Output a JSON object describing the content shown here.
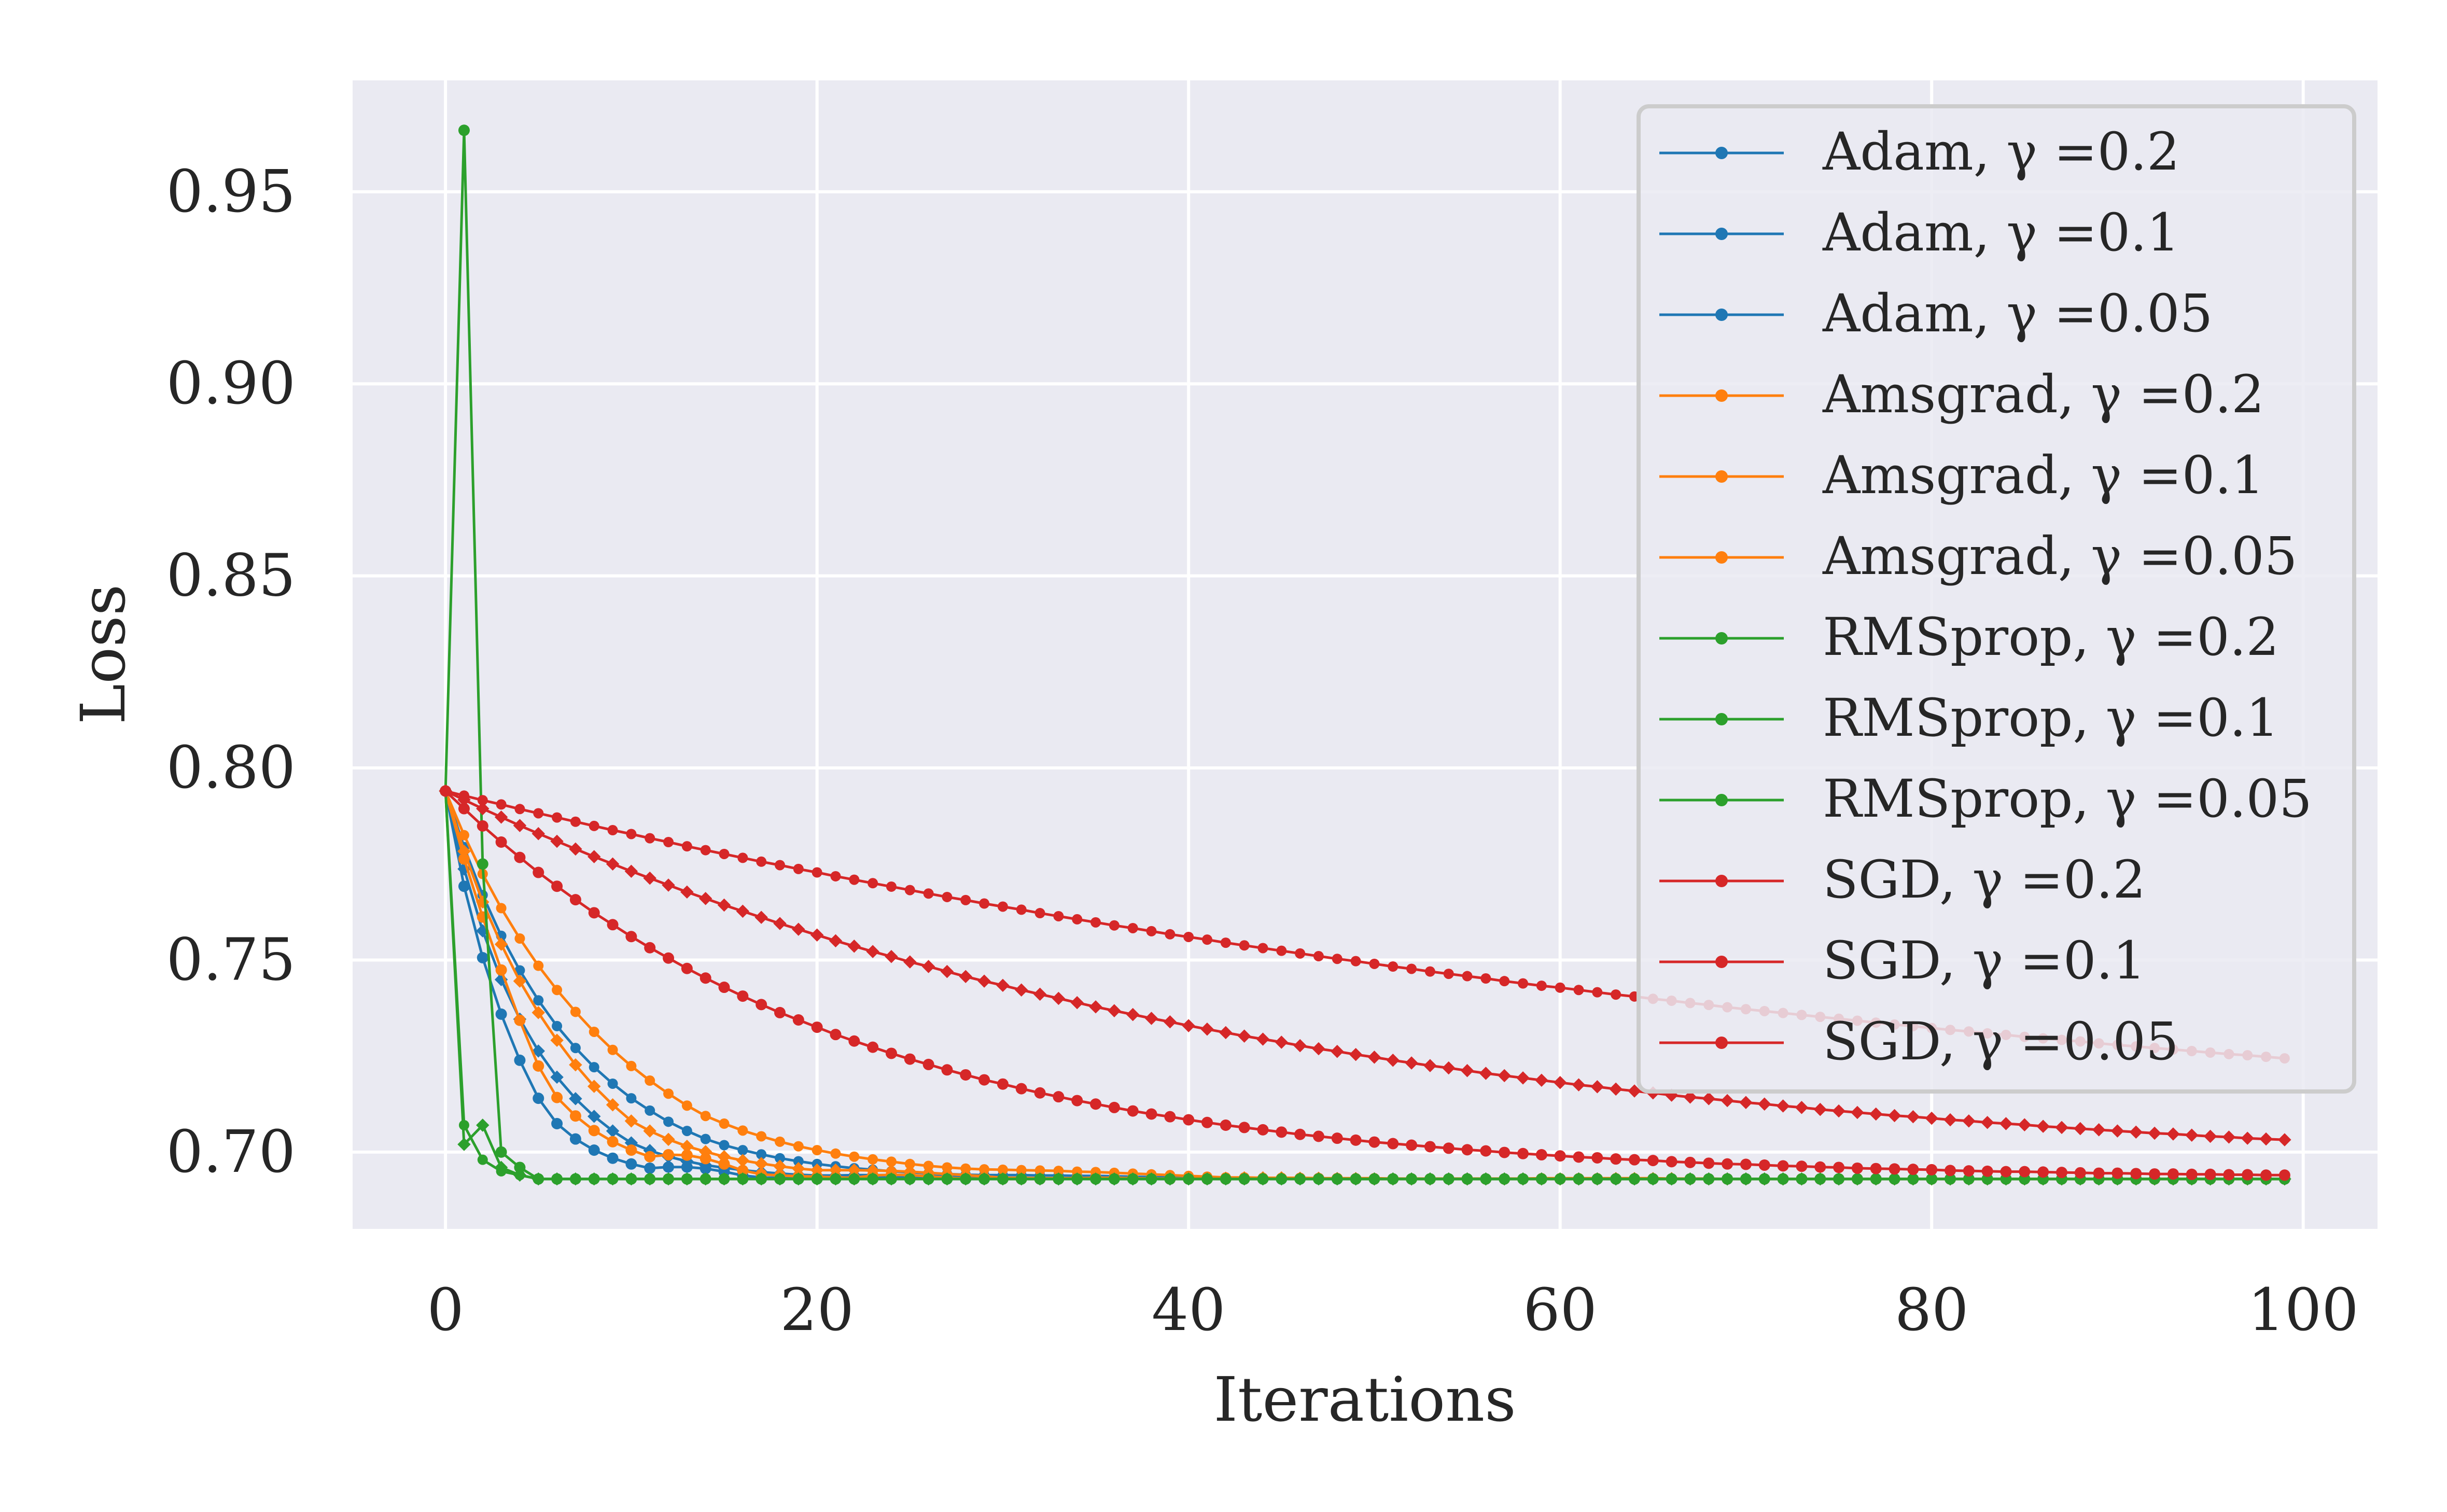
{
  "chart_data": {
    "type": "line",
    "title": "",
    "xlabel": "Iterations",
    "ylabel": "Loss",
    "xlim": [
      -5,
      104
    ],
    "ylim": [
      0.68,
      0.979
    ],
    "xticks": [
      0,
      20,
      40,
      60,
      80,
      100
    ],
    "yticks": [
      0.7,
      0.75,
      0.8,
      0.85,
      0.9,
      0.95
    ],
    "grid": true,
    "legend_position": "top-right",
    "colors": {
      "blue": "#1f77b4",
      "orange": "#ff7f0e",
      "green": "#2ca02c",
      "red": "#d62728",
      "plot_bg": "#eaeaf2",
      "grid": "#ffffff"
    },
    "series": [
      {
        "name": "Adam, γ =0.2",
        "optimizer": "Adam",
        "lr": 0.2,
        "color": "#1f77b4",
        "marker": "circle"
      },
      {
        "name": "Adam, γ =0.1",
        "optimizer": "Adam",
        "lr": 0.1,
        "color": "#1f77b4",
        "marker": "star"
      },
      {
        "name": "Adam, γ =0.05",
        "optimizer": "Adam",
        "lr": 0.05,
        "color": "#1f77b4",
        "marker": "dot"
      },
      {
        "name": "Amsgrad, γ =0.2",
        "optimizer": "Amsgrad",
        "lr": 0.2,
        "color": "#ff7f0e",
        "marker": "circle"
      },
      {
        "name": "Amsgrad, γ =0.1",
        "optimizer": "Amsgrad",
        "lr": 0.1,
        "color": "#ff7f0e",
        "marker": "star"
      },
      {
        "name": "Amsgrad, γ =0.05",
        "optimizer": "Amsgrad",
        "lr": 0.05,
        "color": "#ff7f0e",
        "marker": "dot"
      },
      {
        "name": "RMSprop, γ =0.2",
        "optimizer": "RMSprop",
        "lr": 0.2,
        "color": "#2ca02c",
        "marker": "circle"
      },
      {
        "name": "RMSprop, γ =0.1",
        "optimizer": "RMSprop",
        "lr": 0.1,
        "color": "#2ca02c",
        "marker": "star"
      },
      {
        "name": "RMSprop, γ =0.05",
        "optimizer": "RMSprop",
        "lr": 0.05,
        "color": "#2ca02c",
        "marker": "dot"
      },
      {
        "name": "SGD, γ =0.2",
        "optimizer": "SGD",
        "lr": 0.2,
        "color": "#d62728",
        "marker": "circle"
      },
      {
        "name": "SGD, γ =0.1",
        "optimizer": "SGD",
        "lr": 0.1,
        "color": "#d62728",
        "marker": "star"
      },
      {
        "name": "SGD, γ =0.05",
        "optimizer": "SGD",
        "lr": 0.05,
        "color": "#d62728",
        "marker": "dot"
      }
    ]
  }
}
